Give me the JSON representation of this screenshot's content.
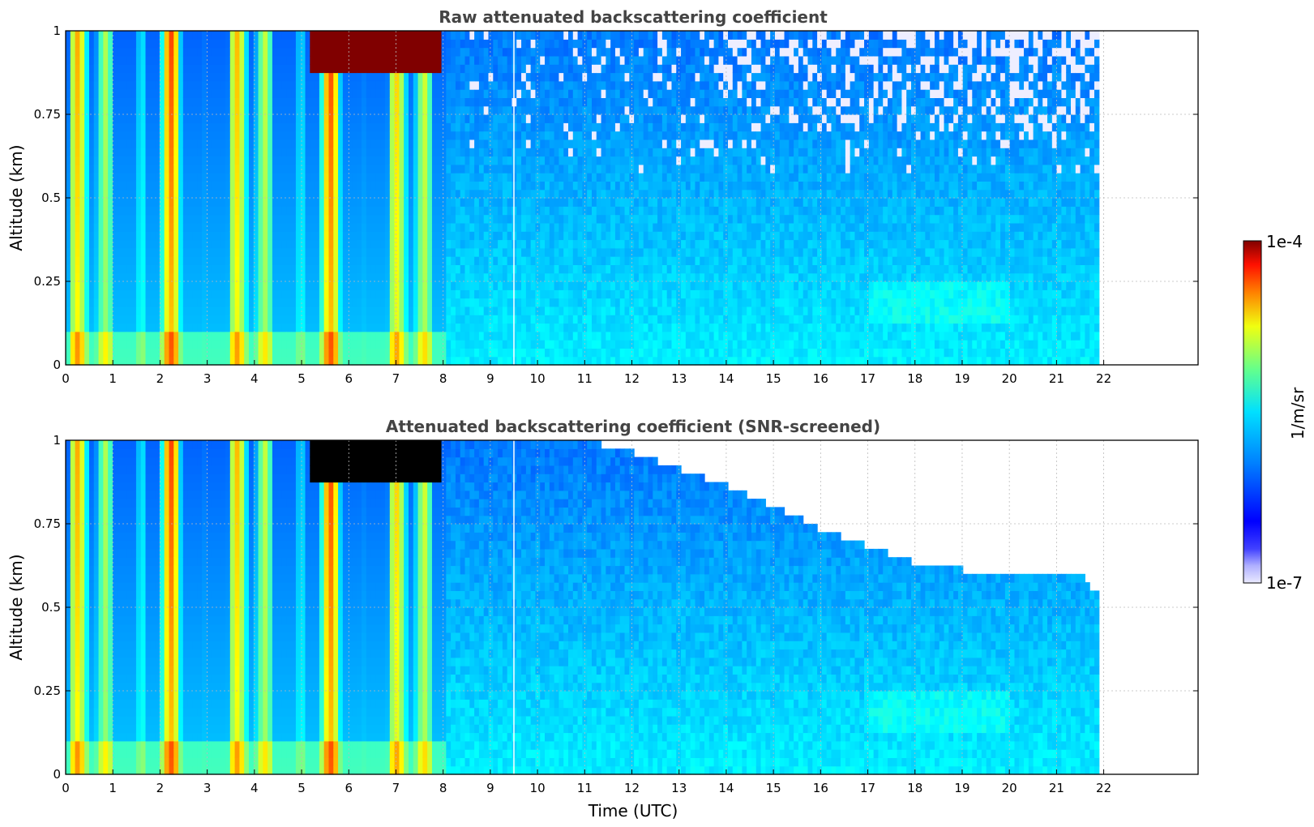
{
  "chart_data": [
    {
      "type": "heatmap",
      "title": "Raw attenuated backscattering coefficient",
      "xlabel": "",
      "ylabel": "Altitude (km)",
      "xlim": [
        0,
        24
      ],
      "ylim": [
        0,
        1
      ],
      "xticks": [
        "0",
        "1",
        "2",
        "3",
        "4",
        "5",
        "6",
        "7",
        "8",
        "9",
        "10",
        "11",
        "12",
        "13",
        "14",
        "15",
        "16",
        "17",
        "18",
        "19",
        "20",
        "21",
        "22"
      ],
      "yticks": [
        "0",
        "0.25",
        "0.5",
        "0.75",
        "1"
      ],
      "grid": true,
      "data_extent_hours": [
        0,
        21.9
      ],
      "features": {
        "strong_columns_hours": [
          0.0,
          1.8,
          2.6,
          4.0,
          5.1,
          7.9
        ],
        "saturated_cloud_top_hours": [
          5.1,
          7.9
        ],
        "noise_region_start_hours": 8.0,
        "data_gap_hour": 9.5
      }
    },
    {
      "type": "heatmap",
      "title": "Attenuated backscattering coefficient (SNR-screened)",
      "xlabel": "Time (UTC)",
      "ylabel": "Altitude (km)",
      "xlim": [
        0,
        24
      ],
      "ylim": [
        0,
        1
      ],
      "xticks": [
        "0",
        "1",
        "2",
        "3",
        "4",
        "5",
        "6",
        "7",
        "8",
        "9",
        "10",
        "11",
        "12",
        "13",
        "14",
        "15",
        "16",
        "17",
        "18",
        "19",
        "20",
        "21",
        "22"
      ],
      "yticks": [
        "0",
        "0.25",
        "0.5",
        "0.75",
        "1"
      ],
      "grid": true,
      "data_extent_hours": [
        0,
        21.9
      ],
      "screened_top_km": [
        [
          10.5,
          1.0
        ],
        [
          12,
          0.95
        ],
        [
          14,
          0.85
        ],
        [
          16,
          0.72
        ],
        [
          18,
          0.62
        ],
        [
          20,
          0.58
        ],
        [
          21.5,
          0.58
        ],
        [
          21.9,
          0.52
        ]
      ]
    }
  ],
  "colorbar": {
    "label": "1/m/sr",
    "max_label": "1e-4",
    "min_label": "1e-7",
    "scale": "log",
    "range": [
      1e-07,
      0.0001
    ],
    "colormap": "jet"
  }
}
